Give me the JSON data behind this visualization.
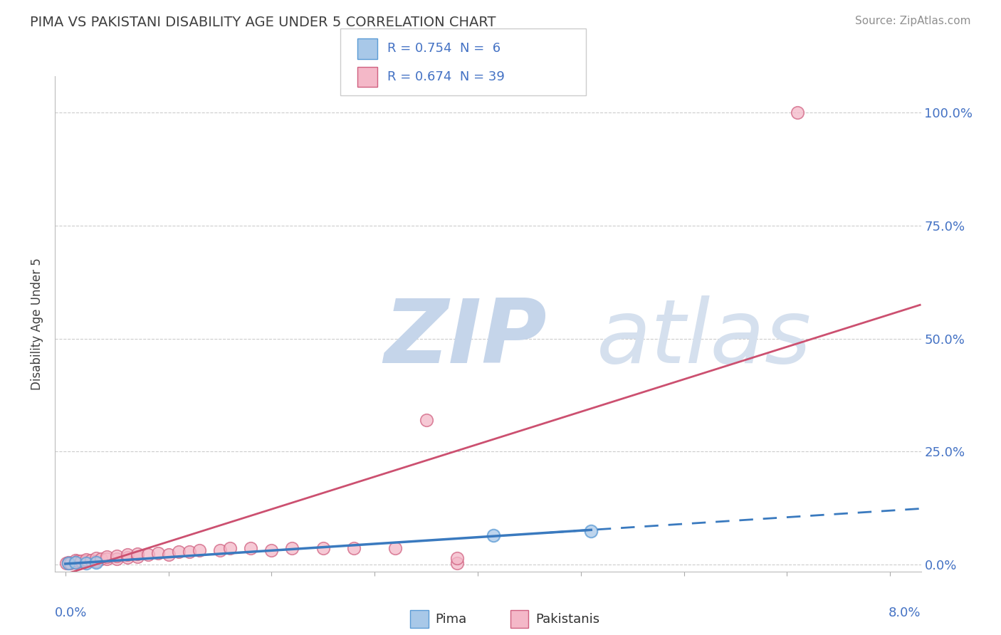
{
  "title": "PIMA VS PAKISTANI DISABILITY AGE UNDER 5 CORRELATION CHART",
  "source": "Source: ZipAtlas.com",
  "ylabel": "Disability Age Under 5",
  "y_tick_labels": [
    "0.0%",
    "25.0%",
    "50.0%",
    "75.0%",
    "100.0%"
  ],
  "y_tick_values": [
    0.0,
    0.25,
    0.5,
    0.75,
    1.0
  ],
  "xlim": [
    -0.001,
    0.083
  ],
  "ylim": [
    -0.015,
    1.08
  ],
  "pima_color": "#a8c8e8",
  "pima_edge_color": "#5b9bd5",
  "pakistani_color": "#f4b8c8",
  "pakistani_edge_color": "#d06080",
  "pima_R": "0.754",
  "pima_N": "6",
  "pakistani_R": "0.674",
  "pakistani_N": "39",
  "legend_label_pima": "Pima",
  "legend_label_pakistani": "Pakistanis",
  "title_color": "#404040",
  "source_color": "#909090",
  "axis_label_color": "#4472c4",
  "text_color": "#303030",
  "watermark_zip_color": "#c5d5ea",
  "watermark_atlas_color": "#d5e0ee",
  "grid_color": "#cccccc",
  "trend_pima_color": "#3a7abf",
  "trend_pak_color": "#cc5070",
  "pima_x": [
    0.0003,
    0.001,
    0.002,
    0.003,
    0.0415,
    0.051
  ],
  "pima_y": [
    0.003,
    0.005,
    0.004,
    0.005,
    0.065,
    0.075
  ],
  "pak_x": [
    0.0001,
    0.0003,
    0.0005,
    0.001,
    0.001,
    0.0012,
    0.0015,
    0.002,
    0.002,
    0.0025,
    0.003,
    0.003,
    0.0035,
    0.004,
    0.004,
    0.005,
    0.005,
    0.006,
    0.006,
    0.007,
    0.007,
    0.008,
    0.009,
    0.01,
    0.011,
    0.012,
    0.013,
    0.015,
    0.016,
    0.018,
    0.02,
    0.022,
    0.025,
    0.028,
    0.032,
    0.035,
    0.038,
    0.038,
    0.071
  ],
  "pak_y": [
    0.003,
    0.005,
    0.004,
    0.005,
    0.01,
    0.008,
    0.009,
    0.008,
    0.012,
    0.01,
    0.008,
    0.015,
    0.013,
    0.013,
    0.018,
    0.013,
    0.02,
    0.016,
    0.022,
    0.018,
    0.024,
    0.022,
    0.026,
    0.022,
    0.028,
    0.028,
    0.032,
    0.032,
    0.036,
    0.036,
    0.032,
    0.036,
    0.036,
    0.036,
    0.036,
    0.32,
    0.004,
    0.015,
    1.0
  ],
  "pak_trend_x0": -0.001,
  "pak_trend_x1": 0.083,
  "pak_trend_y0_val": -0.028,
  "pak_trend_y1_val": 0.575,
  "pima_trend_solid_x0": 0.0,
  "pima_trend_solid_x1": 0.051,
  "pima_trend_y0_val": 0.002,
  "pima_trend_y1_val": 0.077,
  "pima_trend_dashed_x0": 0.047,
  "pima_trend_dashed_x1": 0.083,
  "background_color": "#ffffff"
}
